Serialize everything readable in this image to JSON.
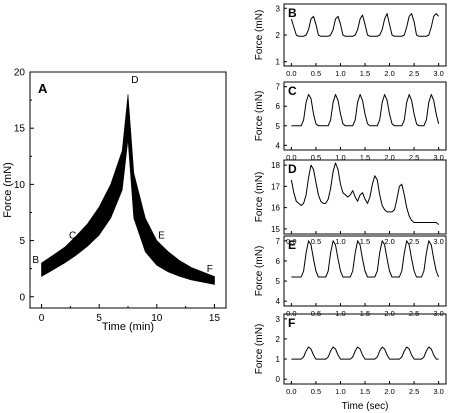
{
  "figure": {
    "panels": [
      {
        "id": "A",
        "label": "A",
        "ylabel": "Force (mN)",
        "xlabel": "Time (min)",
        "xticks": [
          "0",
          "5",
          "10",
          "15"
        ],
        "yticks": [
          "0",
          "5",
          "10",
          "15",
          "20"
        ]
      },
      {
        "id": "B",
        "label": "B",
        "ylabel": "Force (mN)",
        "yticks": [
          "1",
          "2",
          "3"
        ]
      },
      {
        "id": "C",
        "label": "C",
        "ylabel": "Force (mN)",
        "yticks": [
          "4",
          "5",
          "6",
          "7"
        ]
      },
      {
        "id": "D",
        "label": "D",
        "ylabel": "Force (mN)",
        "yticks": [
          "15",
          "16",
          "17",
          "18"
        ]
      },
      {
        "id": "E",
        "label": "E",
        "ylabel": "Force (mN)",
        "yticks": [
          "4",
          "5",
          "6",
          "7"
        ]
      },
      {
        "id": "F",
        "label": "F",
        "ylabel": "Force (mN)",
        "yticks": [
          "0",
          "1",
          "2",
          "3"
        ]
      }
    ],
    "shared_xticks": [
      "0.0",
      "0.5",
      "1.0",
      "1.5",
      "2.0",
      "2.5",
      "3.0"
    ],
    "shared_xlabel": "Time (sec)",
    "point_labels": [
      "B",
      "C",
      "D",
      "E",
      "F"
    ]
  },
  "chart_data": [
    {
      "panel": "A",
      "type": "area",
      "xlabel": "Time (min)",
      "ylabel": "Force (mN)",
      "xlim": [
        -1,
        16
      ],
      "ylim": [
        -1,
        20
      ],
      "x": [
        0,
        1,
        2,
        3,
        4,
        5,
        6,
        7,
        7.5,
        8,
        9,
        10,
        11,
        12,
        13,
        14,
        15
      ],
      "upper": [
        3.0,
        3.7,
        4.4,
        5.4,
        6.5,
        8.0,
        10.0,
        13.0,
        18.0,
        11.0,
        7.0,
        5.0,
        4.0,
        3.2,
        2.6,
        2.2,
        1.8
      ],
      "lower": [
        1.8,
        2.4,
        3.0,
        3.7,
        4.5,
        5.5,
        7.0,
        9.5,
        14.0,
        7.0,
        4.0,
        2.8,
        2.2,
        1.8,
        1.5,
        1.3,
        1.1
      ],
      "annotations": [
        {
          "text": "B",
          "x": -0.5,
          "y": 3.0
        },
        {
          "text": "C",
          "x": 2.7,
          "y": 5.2
        },
        {
          "text": "D",
          "x": 8.1,
          "y": 19.0
        },
        {
          "text": "E",
          "x": 10.4,
          "y": 5.2
        },
        {
          "text": "F",
          "x": 14.6,
          "y": 2.2
        }
      ]
    },
    {
      "panel": "B",
      "type": "line",
      "ylim": [
        1,
        3
      ],
      "xlim": [
        -0.15,
        3.15
      ],
      "x": [
        0.0,
        0.05,
        0.1,
        0.15,
        0.2,
        0.25,
        0.3,
        0.35,
        0.4,
        0.45,
        0.5,
        0.55,
        0.6,
        0.65,
        0.7,
        0.75,
        0.8,
        0.85,
        0.9,
        0.95,
        1.0,
        1.05,
        1.1,
        1.15,
        1.2,
        1.25,
        1.3,
        1.35,
        1.4,
        1.45,
        1.5,
        1.55,
        1.6,
        1.65,
        1.7,
        1.75,
        1.8,
        1.85,
        1.9,
        1.95,
        2.0,
        2.05,
        2.1,
        2.15,
        2.2,
        2.25,
        2.3,
        2.35,
        2.4,
        2.45,
        2.5,
        2.55,
        2.6,
        2.65,
        2.7,
        2.75,
        2.8,
        2.85,
        2.9,
        2.95,
        3.0
      ],
      "y": [
        2.6,
        2.3,
        2.0,
        1.95,
        1.95,
        1.95,
        2.0,
        2.2,
        2.6,
        2.7,
        2.4,
        2.0,
        1.95,
        1.95,
        1.95,
        1.95,
        2.0,
        2.2,
        2.6,
        2.7,
        2.4,
        2.0,
        1.95,
        1.95,
        1.95,
        1.95,
        2.0,
        2.2,
        2.6,
        2.75,
        2.4,
        2.0,
        1.95,
        1.95,
        1.95,
        1.95,
        2.0,
        2.2,
        2.6,
        2.8,
        2.4,
        2.0,
        1.95,
        1.95,
        1.95,
        1.95,
        2.0,
        2.3,
        2.7,
        2.8,
        2.5,
        2.0,
        1.95,
        1.95,
        1.95,
        1.95,
        2.0,
        2.3,
        2.7,
        2.8,
        2.7
      ]
    },
    {
      "panel": "C",
      "type": "line",
      "ylim": [
        4,
        7
      ],
      "xlim": [
        -0.15,
        3.15
      ],
      "x": [
        0.0,
        0.05,
        0.1,
        0.15,
        0.2,
        0.25,
        0.3,
        0.35,
        0.4,
        0.45,
        0.5,
        0.55,
        0.6,
        0.65,
        0.7,
        0.75,
        0.8,
        0.85,
        0.9,
        0.95,
        1.0,
        1.05,
        1.1,
        1.15,
        1.2,
        1.25,
        1.3,
        1.35,
        1.4,
        1.45,
        1.5,
        1.55,
        1.6,
        1.65,
        1.7,
        1.75,
        1.8,
        1.85,
        1.9,
        1.95,
        2.0,
        2.05,
        2.1,
        2.15,
        2.2,
        2.25,
        2.3,
        2.35,
        2.4,
        2.45,
        2.5,
        2.55,
        2.6,
        2.65,
        2.7,
        2.75,
        2.8,
        2.85,
        2.9,
        2.95,
        3.0
      ],
      "y": [
        5.0,
        5.0,
        5.0,
        5.0,
        5.0,
        5.3,
        6.2,
        6.6,
        6.4,
        5.6,
        5.1,
        5.0,
        5.0,
        5.0,
        5.0,
        5.0,
        5.3,
        6.2,
        6.6,
        6.3,
        5.6,
        5.1,
        5.0,
        5.0,
        5.0,
        5.0,
        5.3,
        6.2,
        6.6,
        6.3,
        5.6,
        5.1,
        5.0,
        5.0,
        5.0,
        5.0,
        5.3,
        6.2,
        6.6,
        6.3,
        5.6,
        5.1,
        5.0,
        5.0,
        5.0,
        5.0,
        5.3,
        6.2,
        6.6,
        6.3,
        5.6,
        5.1,
        5.0,
        5.0,
        5.0,
        5.3,
        6.2,
        6.6,
        6.3,
        5.6,
        5.1
      ]
    },
    {
      "panel": "D",
      "type": "line",
      "ylim": [
        15,
        18
      ],
      "xlim": [
        -0.15,
        3.15
      ],
      "x": [
        0.0,
        0.05,
        0.1,
        0.15,
        0.2,
        0.25,
        0.3,
        0.35,
        0.4,
        0.45,
        0.5,
        0.55,
        0.6,
        0.65,
        0.7,
        0.75,
        0.8,
        0.85,
        0.9,
        0.95,
        1.0,
        1.05,
        1.1,
        1.15,
        1.2,
        1.25,
        1.3,
        1.35,
        1.4,
        1.45,
        1.5,
        1.55,
        1.6,
        1.65,
        1.7,
        1.75,
        1.8,
        1.85,
        1.9,
        1.95,
        2.0,
        2.05,
        2.1,
        2.15,
        2.2,
        2.25,
        2.3,
        2.35,
        2.4,
        2.45,
        2.5,
        2.55,
        2.6,
        2.65,
        2.7,
        2.75,
        2.8,
        2.85,
        2.9,
        2.95,
        3.0
      ],
      "y": [
        17.3,
        16.7,
        16.3,
        16.2,
        16.1,
        16.2,
        16.6,
        17.4,
        18.0,
        17.8,
        17.2,
        16.6,
        16.3,
        16.2,
        16.2,
        16.4,
        16.9,
        17.7,
        18.1,
        17.8,
        17.1,
        16.7,
        16.6,
        16.5,
        16.6,
        16.8,
        16.5,
        16.3,
        16.6,
        16.7,
        16.4,
        16.2,
        16.5,
        17.1,
        17.5,
        17.3,
        16.6,
        16.1,
        15.9,
        15.8,
        15.8,
        15.8,
        15.9,
        16.4,
        17.0,
        17.1,
        16.6,
        16.0,
        15.6,
        15.4,
        15.3,
        15.3,
        15.3,
        15.3,
        15.3,
        15.3,
        15.3,
        15.3,
        15.3,
        15.3,
        15.2
      ]
    },
    {
      "panel": "E",
      "type": "line",
      "ylim": [
        4,
        7
      ],
      "xlim": [
        -0.15,
        3.15
      ],
      "x": [
        0.0,
        0.05,
        0.1,
        0.15,
        0.2,
        0.25,
        0.3,
        0.35,
        0.4,
        0.45,
        0.5,
        0.55,
        0.6,
        0.65,
        0.7,
        0.75,
        0.8,
        0.85,
        0.9,
        0.95,
        1.0,
        1.05,
        1.1,
        1.15,
        1.2,
        1.25,
        1.3,
        1.35,
        1.4,
        1.45,
        1.5,
        1.55,
        1.6,
        1.65,
        1.7,
        1.75,
        1.8,
        1.85,
        1.9,
        1.95,
        2.0,
        2.05,
        2.1,
        2.15,
        2.2,
        2.25,
        2.3,
        2.35,
        2.4,
        2.45,
        2.5,
        2.55,
        2.6,
        2.65,
        2.7,
        2.75,
        2.8,
        2.85,
        2.9,
        2.95,
        3.0
      ],
      "y": [
        5.2,
        5.2,
        5.2,
        5.2,
        5.2,
        5.5,
        6.4,
        7.0,
        6.8,
        6.1,
        5.5,
        5.2,
        5.2,
        5.2,
        5.2,
        5.5,
        6.4,
        7.0,
        6.8,
        6.1,
        5.5,
        5.2,
        5.2,
        5.2,
        5.2,
        5.5,
        6.4,
        7.0,
        6.8,
        6.1,
        5.5,
        5.2,
        5.2,
        5.2,
        5.2,
        5.5,
        6.4,
        7.0,
        6.8,
        6.1,
        5.5,
        5.2,
        5.2,
        5.2,
        5.2,
        5.5,
        6.4,
        7.0,
        6.8,
        6.1,
        5.5,
        5.2,
        5.2,
        5.2,
        5.5,
        6.4,
        7.0,
        6.8,
        6.1,
        5.5,
        5.2
      ]
    },
    {
      "panel": "F",
      "type": "line",
      "ylim": [
        0,
        3
      ],
      "xlim": [
        -0.15,
        3.15
      ],
      "x": [
        0.0,
        0.05,
        0.1,
        0.15,
        0.2,
        0.25,
        0.3,
        0.35,
        0.4,
        0.45,
        0.5,
        0.55,
        0.6,
        0.65,
        0.7,
        0.75,
        0.8,
        0.85,
        0.9,
        0.95,
        1.0,
        1.05,
        1.1,
        1.15,
        1.2,
        1.25,
        1.3,
        1.35,
        1.4,
        1.45,
        1.5,
        1.55,
        1.6,
        1.65,
        1.7,
        1.75,
        1.8,
        1.85,
        1.9,
        1.95,
        2.0,
        2.05,
        2.1,
        2.15,
        2.2,
        2.25,
        2.3,
        2.35,
        2.4,
        2.45,
        2.5,
        2.55,
        2.6,
        2.65,
        2.7,
        2.75,
        2.8,
        2.85,
        2.9,
        2.95,
        3.0
      ],
      "y": [
        1.0,
        1.0,
        1.0,
        1.0,
        1.0,
        1.1,
        1.4,
        1.6,
        1.5,
        1.2,
        1.0,
        1.0,
        1.0,
        1.0,
        1.0,
        1.1,
        1.4,
        1.6,
        1.5,
        1.2,
        1.0,
        1.0,
        1.0,
        1.0,
        1.0,
        1.1,
        1.4,
        1.6,
        1.5,
        1.2,
        1.0,
        1.0,
        1.0,
        1.0,
        1.0,
        1.1,
        1.4,
        1.6,
        1.5,
        1.2,
        1.0,
        1.0,
        1.0,
        1.0,
        1.0,
        1.1,
        1.4,
        1.6,
        1.5,
        1.2,
        1.0,
        1.0,
        1.0,
        1.0,
        1.1,
        1.4,
        1.6,
        1.5,
        1.2,
        1.0,
        1.0
      ]
    }
  ]
}
